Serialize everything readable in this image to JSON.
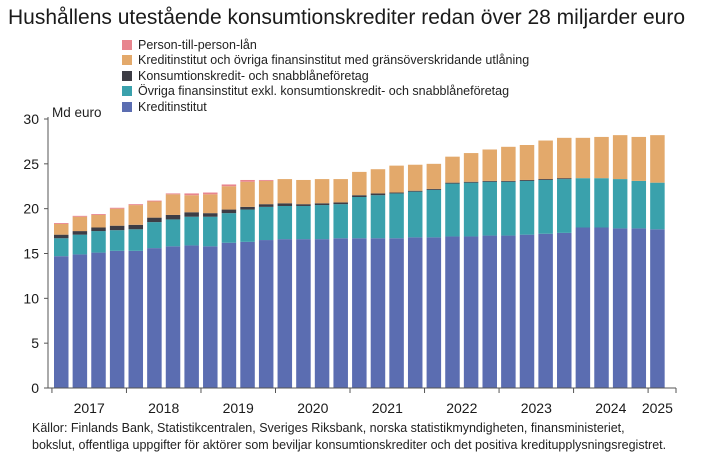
{
  "chart_data": {
    "type": "bar",
    "stacked": true,
    "title": "Hushållens utestående konsumtionskrediter redan över 28 miljarder euro",
    "ylabel": "Md euro",
    "xlabel": "",
    "ylim": [
      0,
      30
    ],
    "yticks": [
      0,
      5,
      10,
      15,
      20,
      25,
      30
    ],
    "year_labels": [
      "2017",
      "2018",
      "2019",
      "2020",
      "2021",
      "2022",
      "2023",
      "2024",
      "2025"
    ],
    "grid": false,
    "legend_position": "top",
    "legend_order": [
      "Person-till-person-lån",
      "Kreditinstitut och övriga finansinstitut med gränsöverskridande utlåning",
      "Konsumtionskredit- och snabblåneföretag",
      "Övriga finansinstitut exkl. konsumtionskredit- och snabblåneföretag",
      "Kreditinstitut"
    ],
    "categories": [
      "2017 Q1",
      "2017 Q2",
      "2017 Q3",
      "2017 Q4",
      "2018 Q1",
      "2018 Q2",
      "2018 Q3",
      "2018 Q4",
      "2019 Q1",
      "2019 Q2",
      "2019 Q3",
      "2019 Q4",
      "2020 Q1",
      "2020 Q2",
      "2020 Q3",
      "2020 Q4",
      "2021 Q1",
      "2021 Q2",
      "2021 Q3",
      "2021 Q4",
      "2022 Q1",
      "2022 Q2",
      "2022 Q3",
      "2022 Q4",
      "2023 Q1",
      "2023 Q2",
      "2023 Q3",
      "2023 Q4",
      "2024 Q1",
      "2024 Q2",
      "2024 Q3",
      "2024 Q4",
      "2025 Q1"
    ],
    "series": [
      {
        "name": "Kreditinstitut",
        "color": "#5b6db1",
        "values": [
          14.7,
          14.9,
          15.1,
          15.3,
          15.3,
          15.6,
          15.8,
          15.9,
          15.8,
          16.2,
          16.3,
          16.5,
          16.6,
          16.6,
          16.6,
          16.7,
          16.7,
          16.7,
          16.7,
          16.8,
          16.8,
          16.9,
          16.9,
          17.0,
          17.0,
          17.1,
          17.2,
          17.3,
          17.9,
          17.9,
          17.8,
          17.8,
          17.7
        ]
      },
      {
        "name": "Övriga finansinstitut exkl. konsumtionskredit- och snabblåneföretag",
        "color": "#3aa1ac",
        "values": [
          2.0,
          2.2,
          2.4,
          2.3,
          2.4,
          2.9,
          3.0,
          3.2,
          3.3,
          3.3,
          3.6,
          3.7,
          3.7,
          3.7,
          3.8,
          3.8,
          4.6,
          4.8,
          5.0,
          5.1,
          5.3,
          5.9,
          6.0,
          6.0,
          6.0,
          6.0,
          6.0,
          6.0,
          5.5,
          5.5,
          5.5,
          5.3,
          5.2
        ]
      },
      {
        "name": "Konsumtionskredit- och snabblåneföretag",
        "color": "#3d3d45",
        "values": [
          0.4,
          0.4,
          0.4,
          0.5,
          0.5,
          0.5,
          0.5,
          0.5,
          0.4,
          0.4,
          0.3,
          0.3,
          0.3,
          0.2,
          0.2,
          0.2,
          0.2,
          0.2,
          0.1,
          0.1,
          0.1,
          0.1,
          0.1,
          0.1,
          0.1,
          0.1,
          0.1,
          0.1,
          0.0,
          0.0,
          0.0,
          0.0,
          0.0
        ]
      },
      {
        "name": "Kreditinstitut och övriga finansinstitut med gränsöverskridande utlåning",
        "color": "#e3a96b",
        "values": [
          1.2,
          1.6,
          1.4,
          1.9,
          2.2,
          1.8,
          2.3,
          1.9,
          2.1,
          2.6,
          2.8,
          2.6,
          2.7,
          2.7,
          2.7,
          2.6,
          2.6,
          2.7,
          3.0,
          2.9,
          2.8,
          2.9,
          3.2,
          3.5,
          3.8,
          3.9,
          4.3,
          4.5,
          4.5,
          4.6,
          4.9,
          4.9,
          5.3
        ]
      },
      {
        "name": "Person-till-person-lån",
        "color": "#e8858e",
        "values": [
          0.1,
          0.1,
          0.1,
          0.1,
          0.1,
          0.1,
          0.1,
          0.2,
          0.2,
          0.2,
          0.2,
          0.1,
          0.0,
          0.0,
          0.0,
          0.0,
          0.0,
          0.0,
          0.0,
          0.0,
          0.0,
          0.0,
          0.0,
          0.0,
          0.0,
          0.0,
          0.0,
          0.0,
          0.0,
          0.0,
          0.0,
          0.0,
          0.0
        ]
      }
    ]
  },
  "source": {
    "line1": "Källor: Finlands Bank, Statistikcentralen, Sveriges Riksbank, norska statistikmyndigheten, finansministeriet,",
    "line2": "bokslut, offentliga uppgifter för aktörer som beviljar konsumtionskrediter och det positiva kreditupplysningsregistret."
  }
}
